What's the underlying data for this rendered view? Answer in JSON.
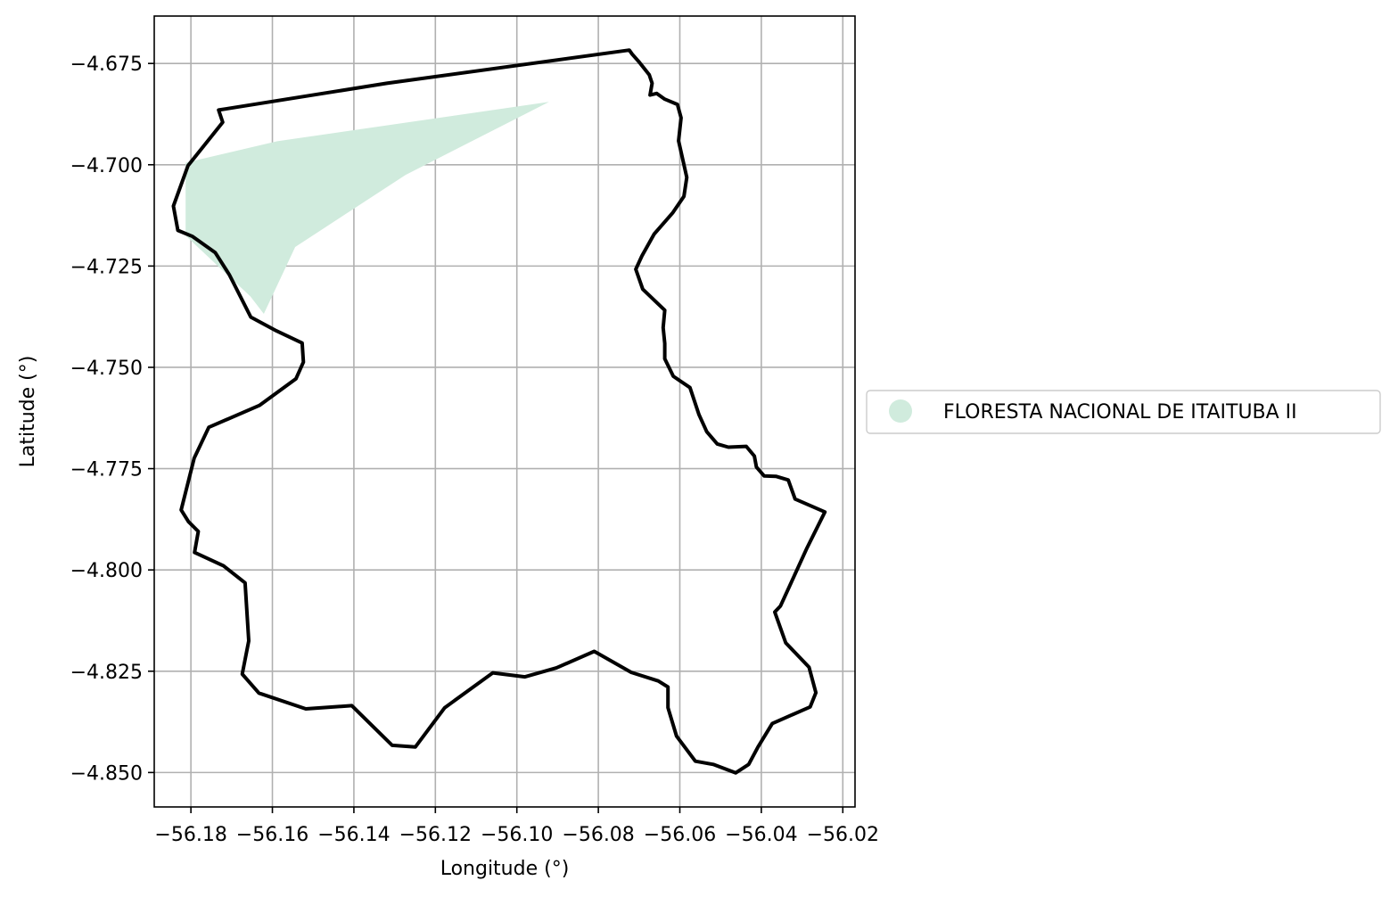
{
  "chart_data": {
    "type": "map",
    "xlabel": "Longitude (°)",
    "ylabel": "Latitude (°)",
    "xlim": [
      -56.189,
      -56.017
    ],
    "ylim": [
      -4.8585,
      -4.6633
    ],
    "grid": true,
    "xticks": [
      {
        "value": -56.18,
        "label": "−56.18"
      },
      {
        "value": -56.16,
        "label": "−56.16"
      },
      {
        "value": -56.14,
        "label": "−56.14"
      },
      {
        "value": -56.12,
        "label": "−56.12"
      },
      {
        "value": -56.1,
        "label": "−56.10"
      },
      {
        "value": -56.08,
        "label": "−56.08"
      },
      {
        "value": -56.06,
        "label": "−56.06"
      },
      {
        "value": -56.04,
        "label": "−56.04"
      },
      {
        "value": -56.02,
        "label": "−56.02"
      }
    ],
    "yticks": [
      {
        "value": -4.675,
        "label": "−4.675"
      },
      {
        "value": -4.7,
        "label": "−4.700"
      },
      {
        "value": -4.725,
        "label": "−4.725"
      },
      {
        "value": -4.75,
        "label": "−4.750"
      },
      {
        "value": -4.775,
        "label": "−4.775"
      },
      {
        "value": -4.8,
        "label": "−4.800"
      },
      {
        "value": -4.825,
        "label": "−4.825"
      },
      {
        "value": -4.85,
        "label": "−4.850"
      }
    ],
    "legend": {
      "placement": "center-right outside",
      "entries": [
        {
          "label": "FLORESTA NACIONAL DE ITAITUBA II",
          "color": "#d0ebdd",
          "marker": "circle"
        }
      ]
    },
    "layers": [
      {
        "name": "FLORESTA NACIONAL DE ITAITUBA II",
        "type": "polygon-fill",
        "color": "#d0ebdd",
        "coordinates": [
          [
            -56.1588,
            -4.6942
          ],
          [
            -56.0921,
            -4.6845
          ],
          [
            -56.1273,
            -4.7025
          ],
          [
            -56.1544,
            -4.7203
          ],
          [
            -56.1621,
            -4.7368
          ],
          [
            -56.1654,
            -4.7325
          ],
          [
            -56.1813,
            -4.7175
          ],
          [
            -56.1813,
            -4.6995
          ]
        ]
      },
      {
        "name": "boundary",
        "type": "polygon-outline",
        "color": "#000000",
        "coordinates": [
          [
            -56.0717,
            -4.6727
          ],
          [
            -56.0701,
            -4.6745
          ],
          [
            -56.0675,
            -4.6778
          ],
          [
            -56.0668,
            -4.6799
          ],
          [
            -56.0673,
            -4.6828
          ],
          [
            -56.0657,
            -4.6824
          ],
          [
            -56.0637,
            -4.6838
          ],
          [
            -56.0606,
            -4.6851
          ],
          [
            -56.0597,
            -4.6884
          ],
          [
            -56.0603,
            -4.6941
          ],
          [
            -56.0592,
            -4.6991
          ],
          [
            -56.0583,
            -4.7031
          ],
          [
            -56.059,
            -4.7078
          ],
          [
            -56.0617,
            -4.7118
          ],
          [
            -56.0663,
            -4.7171
          ],
          [
            -56.0693,
            -4.7225
          ],
          [
            -56.0708,
            -4.7258
          ],
          [
            -56.0691,
            -4.7307
          ],
          [
            -56.0661,
            -4.7336
          ],
          [
            -56.0637,
            -4.7359
          ],
          [
            -56.0641,
            -4.7402
          ],
          [
            -56.0637,
            -4.7441
          ],
          [
            -56.0637,
            -4.7479
          ],
          [
            -56.0616,
            -4.7522
          ],
          [
            -56.0575,
            -4.755
          ],
          [
            -56.0553,
            -4.7617
          ],
          [
            -56.0534,
            -4.7659
          ],
          [
            -56.0508,
            -4.7689
          ],
          [
            -56.0481,
            -4.7697
          ],
          [
            -56.0437,
            -4.7695
          ],
          [
            -56.0417,
            -4.7719
          ],
          [
            -56.0412,
            -4.7746
          ],
          [
            -56.0393,
            -4.7768
          ],
          [
            -56.0364,
            -4.7769
          ],
          [
            -56.0334,
            -4.7778
          ],
          [
            -56.0317,
            -4.7825
          ],
          [
            -56.0244,
            -4.7857
          ],
          [
            -56.0288,
            -4.7946
          ],
          [
            -56.0353,
            -4.8089
          ],
          [
            -56.0367,
            -4.8104
          ],
          [
            -56.034,
            -4.818
          ],
          [
            -56.0283,
            -4.824
          ],
          [
            -56.0266,
            -4.8303
          ],
          [
            -56.028,
            -4.8338
          ],
          [
            -56.0373,
            -4.8379
          ],
          [
            -56.0408,
            -4.8437
          ],
          [
            -56.0431,
            -4.848
          ],
          [
            -56.0463,
            -4.8501
          ],
          [
            -56.0518,
            -4.848
          ],
          [
            -56.0562,
            -4.8472
          ],
          [
            -56.0608,
            -4.841
          ],
          [
            -56.0629,
            -4.834
          ],
          [
            -56.0629,
            -4.8289
          ],
          [
            -56.0653,
            -4.8274
          ],
          [
            -56.0719,
            -4.8253
          ],
          [
            -56.081,
            -4.8201
          ],
          [
            -56.0903,
            -4.8242
          ],
          [
            -56.098,
            -4.8264
          ],
          [
            -56.1059,
            -4.8254
          ],
          [
            -56.1177,
            -4.834
          ],
          [
            -56.1249,
            -4.8437
          ],
          [
            -56.1306,
            -4.8433
          ],
          [
            -56.1405,
            -4.8335
          ],
          [
            -56.1518,
            -4.8343
          ],
          [
            -56.1633,
            -4.8304
          ],
          [
            -56.1674,
            -4.8257
          ],
          [
            -56.1658,
            -4.8175
          ],
          [
            -56.1667,
            -4.8032
          ],
          [
            -56.172,
            -4.799
          ],
          [
            -56.1791,
            -4.7957
          ],
          [
            -56.1782,
            -4.7905
          ],
          [
            -56.1806,
            -4.7881
          ],
          [
            -56.1824,
            -4.7852
          ],
          [
            -56.1792,
            -4.7724
          ],
          [
            -56.1756,
            -4.7648
          ],
          [
            -56.1632,
            -4.7594
          ],
          [
            -56.1542,
            -4.7528
          ],
          [
            -56.1524,
            -4.7487
          ],
          [
            -56.1527,
            -4.744
          ],
          [
            -56.159,
            -4.741
          ],
          [
            -56.1653,
            -4.7376
          ],
          [
            -56.1706,
            -4.7271
          ],
          [
            -56.174,
            -4.7217
          ],
          [
            -56.1796,
            -4.7177
          ],
          [
            -56.1832,
            -4.7162
          ],
          [
            -56.1843,
            -4.7102
          ],
          [
            -56.1807,
            -4.7002
          ],
          [
            -56.1722,
            -4.6895
          ],
          [
            -56.1732,
            -4.6865
          ],
          [
            -56.1319,
            -4.6799
          ],
          [
            -56.0724,
            -4.6717
          ]
        ]
      }
    ]
  }
}
